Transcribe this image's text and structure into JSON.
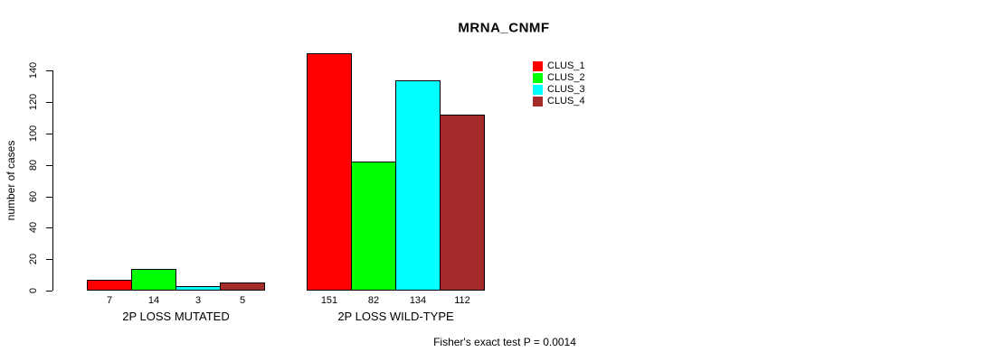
{
  "title": "MRNA_CNMF",
  "footer": "Fisher's exact test P = 0.0014",
  "y_axis": {
    "label": "number of cases",
    "ticks": [
      0,
      20,
      40,
      60,
      80,
      100,
      120,
      140
    ]
  },
  "legend": {
    "items": [
      {
        "label": "CLUS_1",
        "color": "#FF0000"
      },
      {
        "label": "CLUS_2",
        "color": "#00FF00"
      },
      {
        "label": "CLUS_3",
        "color": "#00FFFF"
      },
      {
        "label": "CLUS_4",
        "color": "#A52A2A"
      }
    ]
  },
  "chart_data": {
    "type": "bar",
    "title": "MRNA_CNMF",
    "xlabel": "",
    "ylabel": "number of cases",
    "ylim": [
      0,
      140
    ],
    "yticks": [
      0,
      20,
      40,
      60,
      80,
      100,
      120,
      140
    ],
    "grid": false,
    "legend_position": "right-of-plot-top",
    "categories": [
      "2P LOSS MUTATED",
      "2P LOSS WILD-TYPE"
    ],
    "series": [
      {
        "name": "CLUS_1",
        "color": "#FF0000",
        "values": [
          7,
          151
        ]
      },
      {
        "name": "CLUS_2",
        "color": "#00FF00",
        "values": [
          14,
          82
        ]
      },
      {
        "name": "CLUS_3",
        "color": "#00FFFF",
        "values": [
          3,
          134
        ]
      },
      {
        "name": "CLUS_4",
        "color": "#A52A2A",
        "values": [
          5,
          112
        ]
      }
    ],
    "bar_value_labels": [
      [
        7,
        14,
        3,
        5
      ],
      [
        151,
        82,
        134,
        112
      ]
    ],
    "annotation": "Fisher's exact test P = 0.0014"
  }
}
